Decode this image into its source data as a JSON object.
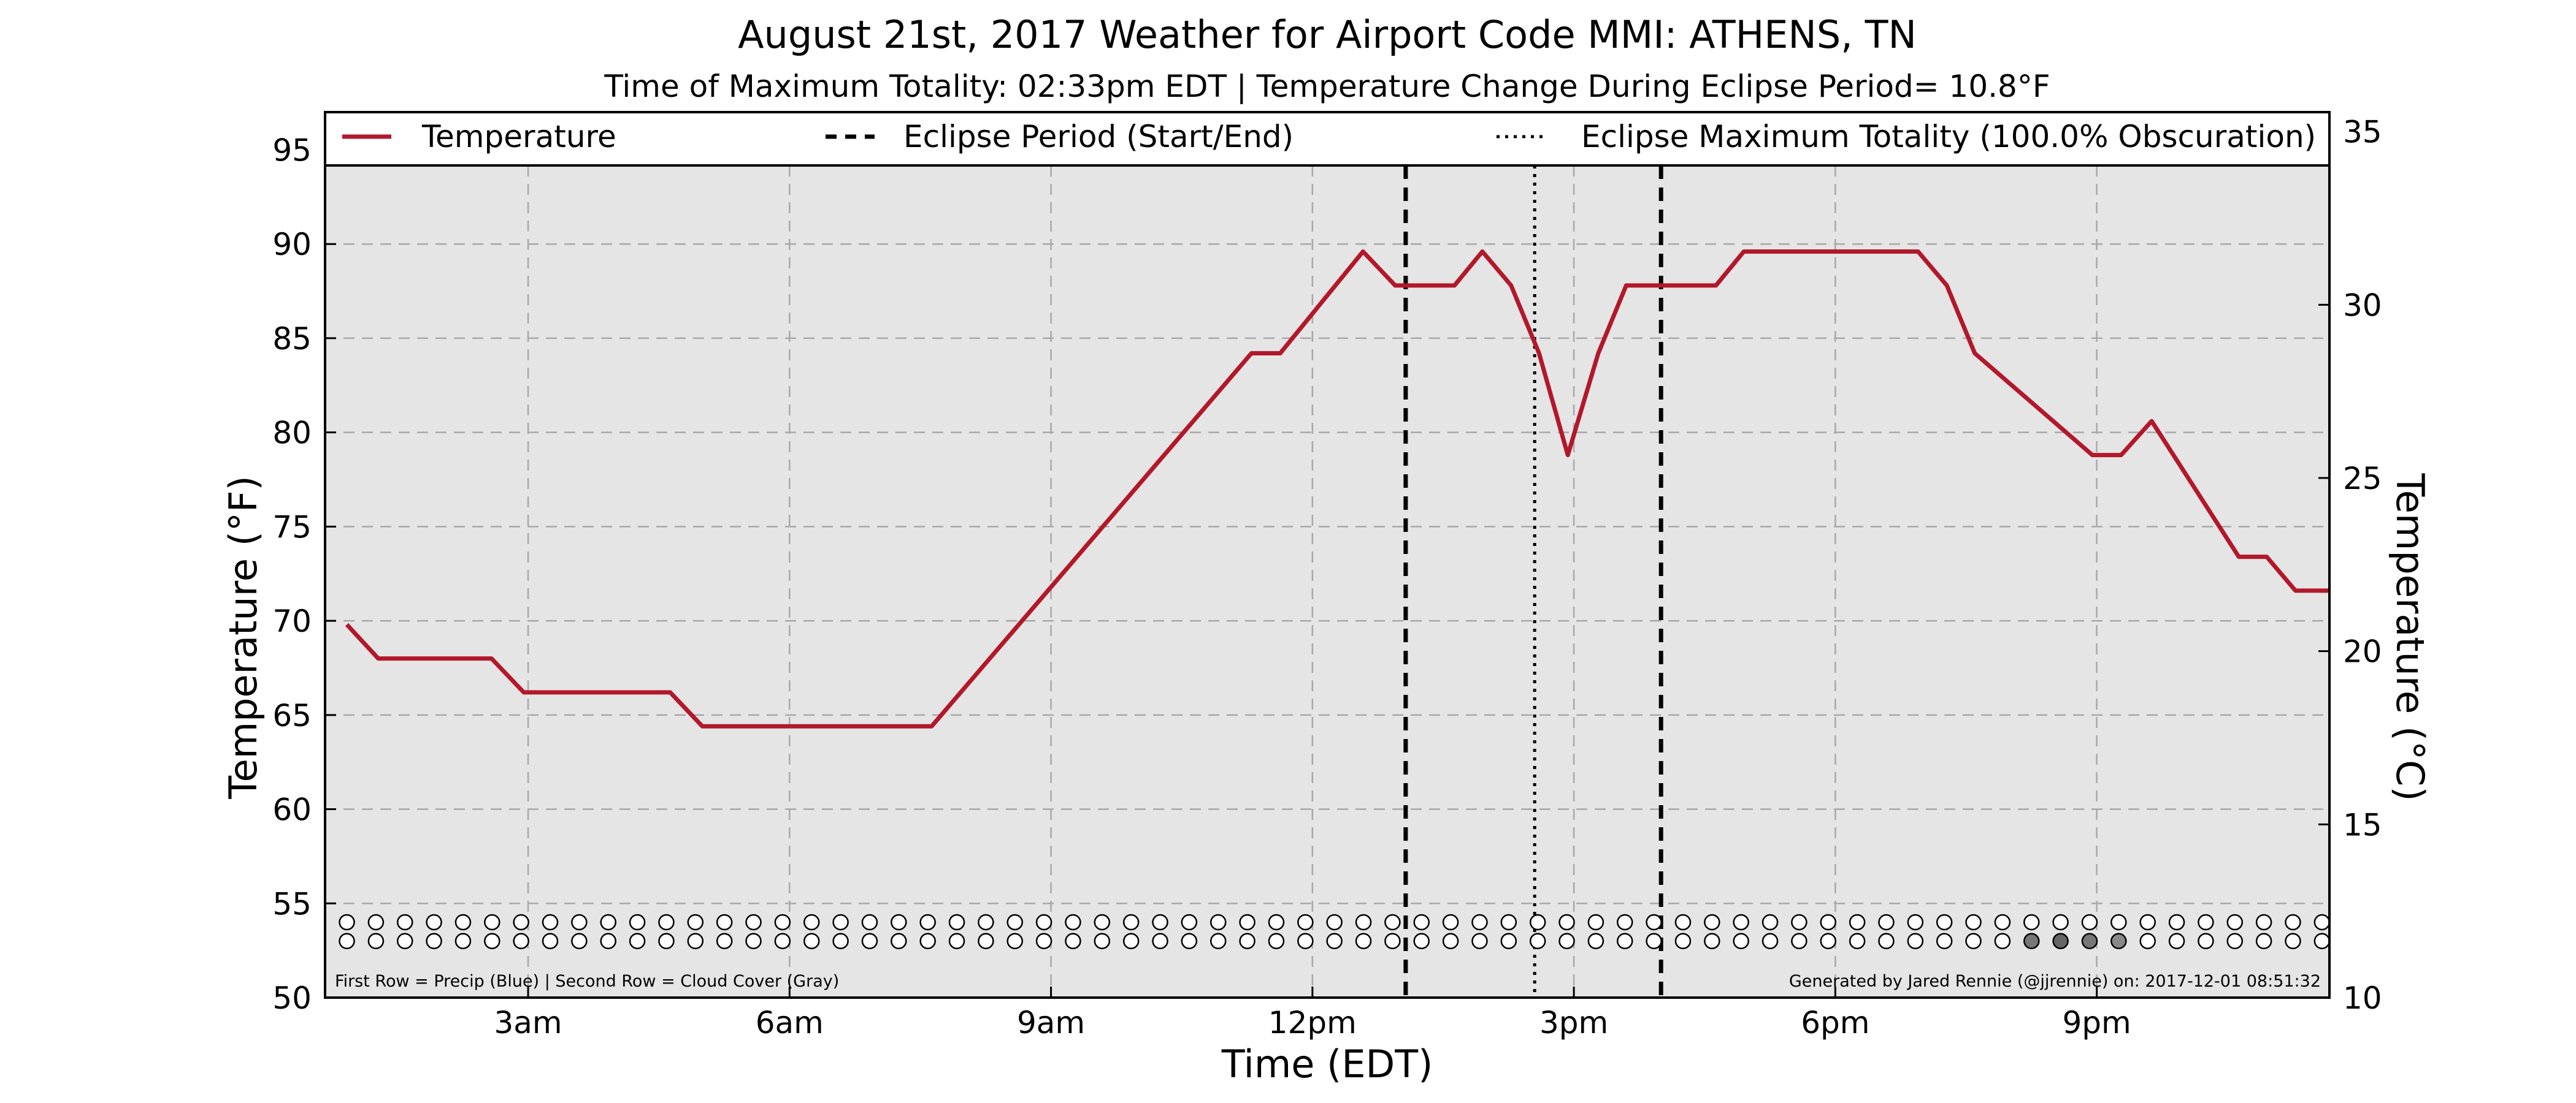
{
  "chart_data": {
    "type": "line",
    "title": "August 21st, 2017 Weather for Airport Code MMI: ATHENS, TN",
    "subtitle": "Time of Maximum Totality: 02:33pm EDT | Temperature Change During Eclipse Period= 10.8°F",
    "xlabel": "Time (EDT)",
    "ylabel": "Temperature (°F)",
    "ylabel_right": "Temperature (°C)",
    "x_unit": "hours since midnight EDT",
    "xlim": [
      0.67,
      23.67
    ],
    "ylim": [
      50,
      97
    ],
    "ylim_right": [
      10,
      35.56
    ],
    "xticks": [
      {
        "x": 3,
        "label": "3am"
      },
      {
        "x": 6,
        "label": "6am"
      },
      {
        "x": 9,
        "label": "9am"
      },
      {
        "x": 12,
        "label": "12pm"
      },
      {
        "x": 15,
        "label": "3pm"
      },
      {
        "x": 18,
        "label": "6pm"
      },
      {
        "x": 21,
        "label": "9pm"
      }
    ],
    "yticks": [
      50,
      55,
      60,
      65,
      70,
      75,
      80,
      85,
      90,
      95
    ],
    "yticks_right": [
      10,
      15,
      20,
      25,
      30,
      35
    ],
    "grid": true,
    "legend_position": "top",
    "legend": [
      {
        "label": "Temperature",
        "style": "solid",
        "color": "#b2182b"
      },
      {
        "label": "Eclipse Period (Start/End)",
        "style": "dashed",
        "color": "#000000"
      },
      {
        "label": "Eclipse Maximum Totality (100.0% Obscuration)",
        "style": "dotted",
        "color": "#000000"
      }
    ],
    "series": [
      {
        "name": "Temperature",
        "color": "#b2182b",
        "x": [
          0.92,
          1.28,
          2.58,
          2.95,
          4.63,
          5.0,
          7.63,
          11.3,
          11.63,
          12.58,
          12.95,
          13.63,
          13.95,
          14.28,
          14.6,
          14.93,
          15.28,
          15.6,
          16.63,
          16.95,
          18.95,
          19.28,
          19.6,
          20.95,
          21.28,
          21.63,
          22.63,
          22.95,
          23.28,
          23.67
        ],
        "y": [
          69.8,
          68.0,
          68.0,
          66.2,
          66.2,
          64.4,
          64.4,
          84.2,
          84.2,
          89.6,
          87.8,
          87.8,
          89.6,
          87.8,
          84.2,
          78.8,
          84.2,
          87.8,
          87.8,
          89.6,
          89.6,
          87.8,
          84.2,
          78.8,
          78.8,
          80.6,
          73.4,
          73.4,
          71.6,
          71.6
        ]
      }
    ],
    "eclipse_start": 13.07,
    "eclipse_end": 16.0,
    "eclipse_max": 14.55,
    "weather_rows": {
      "x_start": 0.92,
      "x_step": 0.3333,
      "count": 69,
      "precip_row_filled": [],
      "cloud_row_filled_indices": [
        58,
        59,
        60,
        61
      ],
      "cloud_colors": [
        "#777777",
        "#666666",
        "#777777",
        "#888888"
      ]
    },
    "footnote_left": "First Row = Precip (Blue) | Second Row = Cloud Cover (Gray)",
    "footnote_right": "Generated by Jared Rennie (@jjrennie) on: 2017-12-01 08:51:32"
  }
}
